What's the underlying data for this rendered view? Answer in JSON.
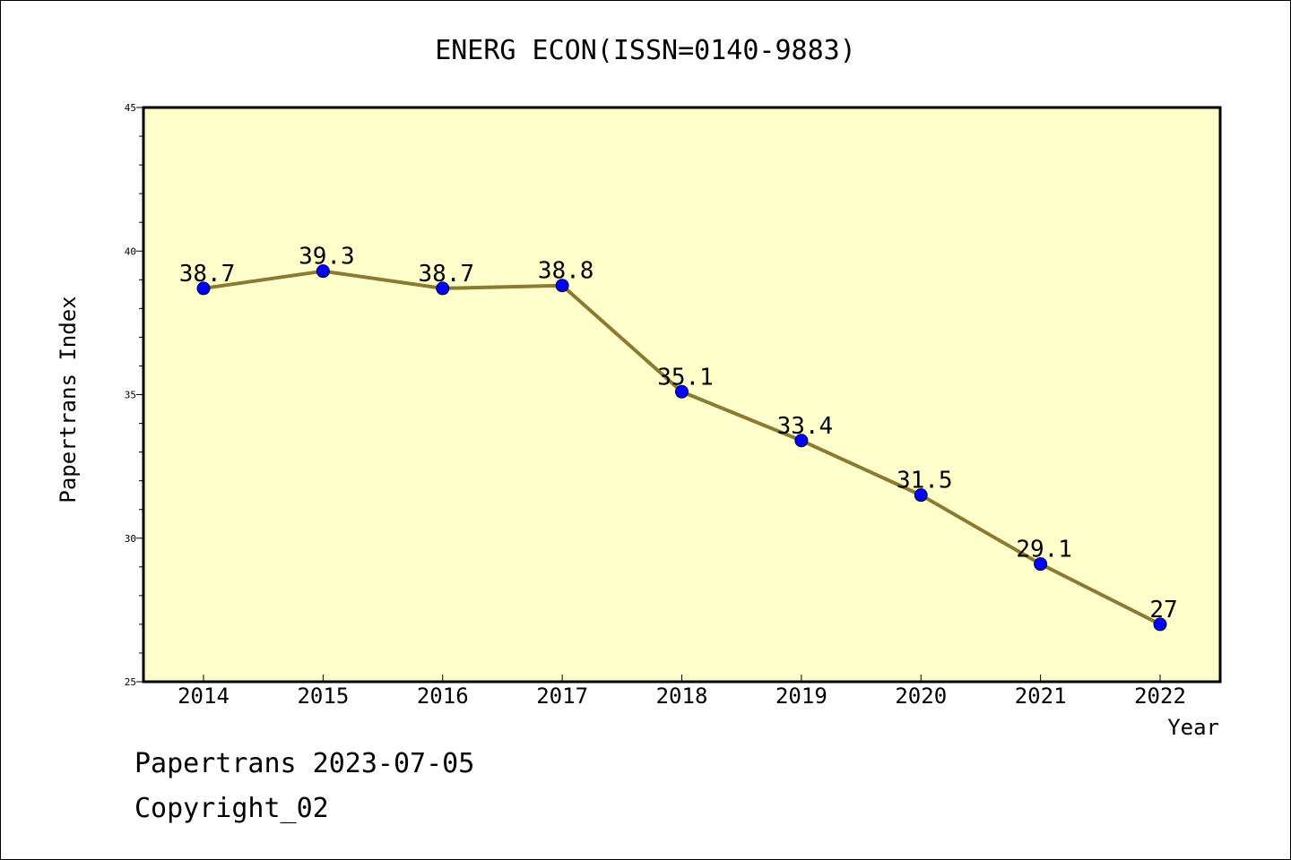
{
  "chart_data": {
    "type": "line",
    "title": "ENERG ECON(ISSN=0140-9883)",
    "xlabel": "Year",
    "ylabel": "Papertrans Index",
    "categories": [
      "2014",
      "2015",
      "2016",
      "2017",
      "2018",
      "2019",
      "2020",
      "2021",
      "2022"
    ],
    "series": [
      {
        "values": [
          38.7,
          39.3,
          38.7,
          38.8,
          35.1,
          33.4,
          31.5,
          29.1,
          27
        ],
        "data_labels": [
          "38.7",
          "39.3",
          "38.7",
          "38.8",
          "35.1",
          "33.4",
          "31.5",
          "29.1",
          "27"
        ]
      }
    ],
    "ylim": [
      25,
      45
    ],
    "y_ticks": [
      "25",
      "30",
      "35",
      "40",
      "45"
    ],
    "grid": false,
    "colors": {
      "plot_background": "#ffffcc",
      "line": "#8b7a32",
      "marker": "#0000ff"
    }
  },
  "footer": {
    "line1": "Papertrans 2023-07-05",
    "line2": "Copyright_02"
  }
}
